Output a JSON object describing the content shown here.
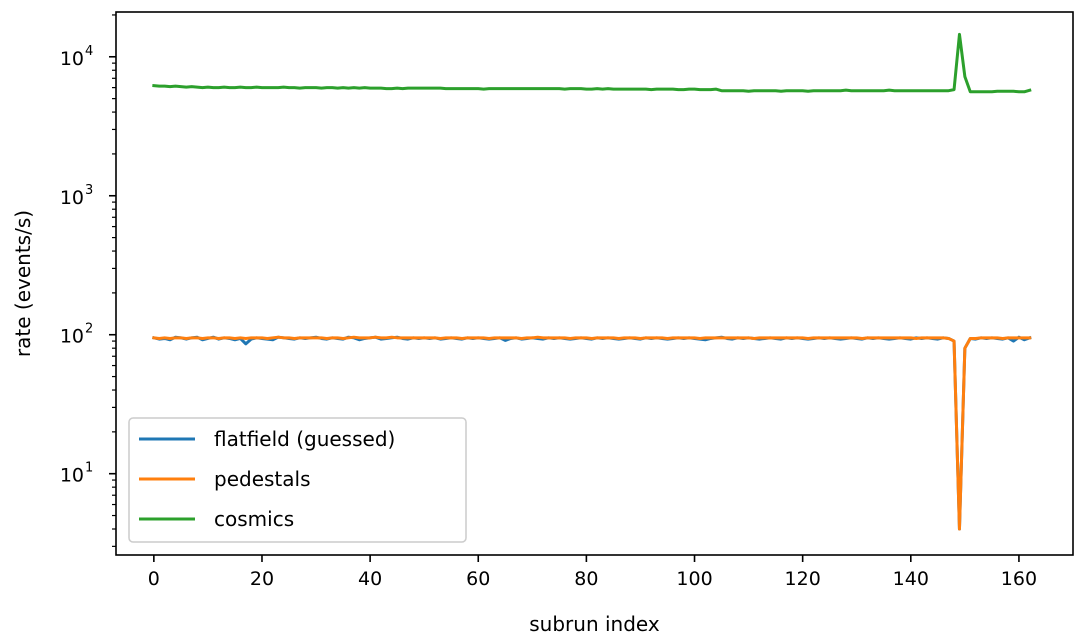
{
  "chart_data": {
    "type": "line",
    "xlabel": "subrun index",
    "ylabel": "rate (events/s)",
    "yscale": "log",
    "xlim": [
      -7,
      170
    ],
    "ylim": [
      2.6,
      21000
    ],
    "x_ticks": [
      0,
      20,
      40,
      60,
      80,
      100,
      120,
      140,
      160
    ],
    "y_ticks": [
      {
        "value": 10,
        "base": "10",
        "exp": "1"
      },
      {
        "value": 100,
        "base": "10",
        "exp": "2"
      },
      {
        "value": 1000,
        "base": "10",
        "exp": "3"
      },
      {
        "value": 10000,
        "base": "10",
        "exp": "4"
      }
    ],
    "grid": false,
    "legend_position": "lower-left",
    "x": [
      0,
      1,
      2,
      3,
      4,
      5,
      6,
      7,
      8,
      9,
      10,
      11,
      12,
      13,
      14,
      15,
      16,
      17,
      18,
      19,
      20,
      21,
      22,
      23,
      24,
      25,
      26,
      27,
      28,
      29,
      30,
      31,
      32,
      33,
      34,
      35,
      36,
      37,
      38,
      39,
      40,
      41,
      42,
      43,
      44,
      45,
      46,
      47,
      48,
      49,
      50,
      51,
      52,
      53,
      54,
      55,
      56,
      57,
      58,
      59,
      60,
      61,
      62,
      63,
      64,
      65,
      66,
      67,
      68,
      69,
      70,
      71,
      72,
      73,
      74,
      75,
      76,
      77,
      78,
      79,
      80,
      81,
      82,
      83,
      84,
      85,
      86,
      87,
      88,
      89,
      90,
      91,
      92,
      93,
      94,
      95,
      96,
      97,
      98,
      99,
      100,
      101,
      102,
      103,
      104,
      105,
      106,
      107,
      108,
      109,
      110,
      111,
      112,
      113,
      114,
      115,
      116,
      117,
      118,
      119,
      120,
      121,
      122,
      123,
      124,
      125,
      126,
      127,
      128,
      129,
      130,
      131,
      132,
      133,
      134,
      135,
      136,
      137,
      138,
      139,
      140,
      141,
      142,
      143,
      144,
      145,
      146,
      147,
      148,
      149,
      150,
      151,
      152,
      153,
      154,
      155,
      156,
      157,
      158,
      159,
      160,
      161,
      162
    ],
    "series": [
      {
        "name": "flatfield (guessed)",
        "color": "#1f77b4",
        "values": [
          95,
          93,
          94,
          92,
          96,
          95,
          93,
          95,
          96,
          92,
          94,
          96,
          93,
          95,
          94,
          92,
          94,
          86,
          93,
          95,
          94,
          93,
          92,
          96,
          95,
          94,
          93,
          95,
          94,
          95,
          96,
          94,
          93,
          95,
          94,
          93,
          96,
          95,
          92,
          94,
          95,
          96,
          93,
          94,
          95,
          96,
          94,
          93,
          95,
          94,
          95,
          94,
          95,
          93,
          94,
          95,
          94,
          93,
          95,
          94,
          95,
          94,
          93,
          94,
          95,
          91,
          94,
          95,
          93,
          94,
          95,
          94,
          93,
          95,
          94,
          95,
          94,
          93,
          94,
          95,
          94,
          93,
          95,
          94,
          95,
          94,
          93,
          94,
          95,
          94,
          93,
          95,
          94,
          95,
          94,
          93,
          94,
          95,
          94,
          95,
          94,
          93,
          92,
          94,
          95,
          96,
          94,
          93,
          95,
          94,
          95,
          94,
          93,
          94,
          95,
          94,
          93,
          95,
          94,
          95,
          94,
          93,
          94,
          95,
          94,
          95,
          94,
          93,
          94,
          95,
          94,
          93,
          95,
          94,
          95,
          94,
          93,
          94,
          95,
          94,
          93,
          95,
          94,
          95,
          94,
          93,
          95,
          94,
          90,
          4,
          80,
          94,
          93,
          95,
          94,
          95,
          94,
          93,
          95,
          90,
          96,
          92,
          95
        ]
      },
      {
        "name": "pedestals",
        "color": "#ff7f0e",
        "values": [
          95,
          94,
          95,
          94,
          95,
          95,
          94,
          95,
          95,
          94,
          95,
          95,
          94,
          95,
          95,
          94,
          95,
          94,
          95,
          95,
          95,
          94,
          95,
          96,
          95,
          95,
          94,
          95,
          95,
          95,
          95,
          95,
          94,
          95,
          95,
          94,
          95,
          96,
          95,
          95,
          95,
          96,
          95,
          95,
          96,
          95,
          95,
          95,
          95,
          95,
          95,
          95,
          95,
          94,
          95,
          95,
          95,
          94,
          95,
          95,
          95,
          95,
          94,
          95,
          95,
          95,
          95,
          95,
          94,
          95,
          95,
          96,
          95,
          95,
          95,
          95,
          95,
          94,
          95,
          95,
          95,
          94,
          95,
          95,
          95,
          95,
          94,
          95,
          95,
          95,
          94,
          95,
          95,
          95,
          95,
          94,
          95,
          95,
          95,
          95,
          95,
          94,
          95,
          95,
          95,
          95,
          95,
          95,
          95,
          95,
          95,
          94,
          95,
          95,
          95,
          95,
          95,
          95,
          95,
          95,
          95,
          94,
          95,
          95,
          95,
          95,
          95,
          95,
          95,
          95,
          95,
          94,
          95,
          95,
          95,
          95,
          95,
          95,
          95,
          95,
          95,
          94,
          95,
          95,
          95,
          95,
          95,
          94,
          90,
          4,
          80,
          94,
          94,
          95,
          95,
          95,
          95,
          94,
          95,
          95,
          95,
          95,
          95
        ]
      },
      {
        "name": "cosmics",
        "color": "#2ca02c",
        "values": [
          6200,
          6150,
          6150,
          6100,
          6150,
          6100,
          6050,
          6100,
          6050,
          6000,
          6050,
          6000,
          6000,
          6050,
          6000,
          6000,
          6050,
          6000,
          6000,
          6050,
          6000,
          6000,
          6000,
          6000,
          6050,
          6000,
          6000,
          5950,
          6000,
          6000,
          6000,
          5950,
          6000,
          6000,
          5950,
          6000,
          5950,
          6000,
          5950,
          6000,
          5950,
          5950,
          5950,
          5900,
          5900,
          5950,
          5900,
          5950,
          5950,
          5950,
          5950,
          5950,
          5950,
          5950,
          5900,
          5900,
          5900,
          5900,
          5900,
          5900,
          5900,
          5850,
          5900,
          5900,
          5900,
          5900,
          5900,
          5900,
          5900,
          5900,
          5900,
          5900,
          5900,
          5900,
          5900,
          5900,
          5850,
          5900,
          5900,
          5900,
          5850,
          5850,
          5900,
          5850,
          5900,
          5850,
          5850,
          5850,
          5850,
          5850,
          5850,
          5850,
          5800,
          5850,
          5850,
          5850,
          5850,
          5800,
          5800,
          5850,
          5850,
          5800,
          5800,
          5800,
          5850,
          5700,
          5700,
          5700,
          5700,
          5700,
          5650,
          5700,
          5700,
          5700,
          5700,
          5700,
          5650,
          5700,
          5700,
          5700,
          5700,
          5650,
          5700,
          5700,
          5700,
          5700,
          5700,
          5700,
          5750,
          5700,
          5700,
          5700,
          5700,
          5700,
          5700,
          5700,
          5750,
          5700,
          5700,
          5700,
          5700,
          5700,
          5700,
          5700,
          5700,
          5700,
          5700,
          5700,
          5800,
          14500,
          7200,
          5600,
          5600,
          5600,
          5600,
          5600,
          5650,
          5650,
          5650,
          5650,
          5600,
          5600,
          5750
        ]
      }
    ]
  }
}
